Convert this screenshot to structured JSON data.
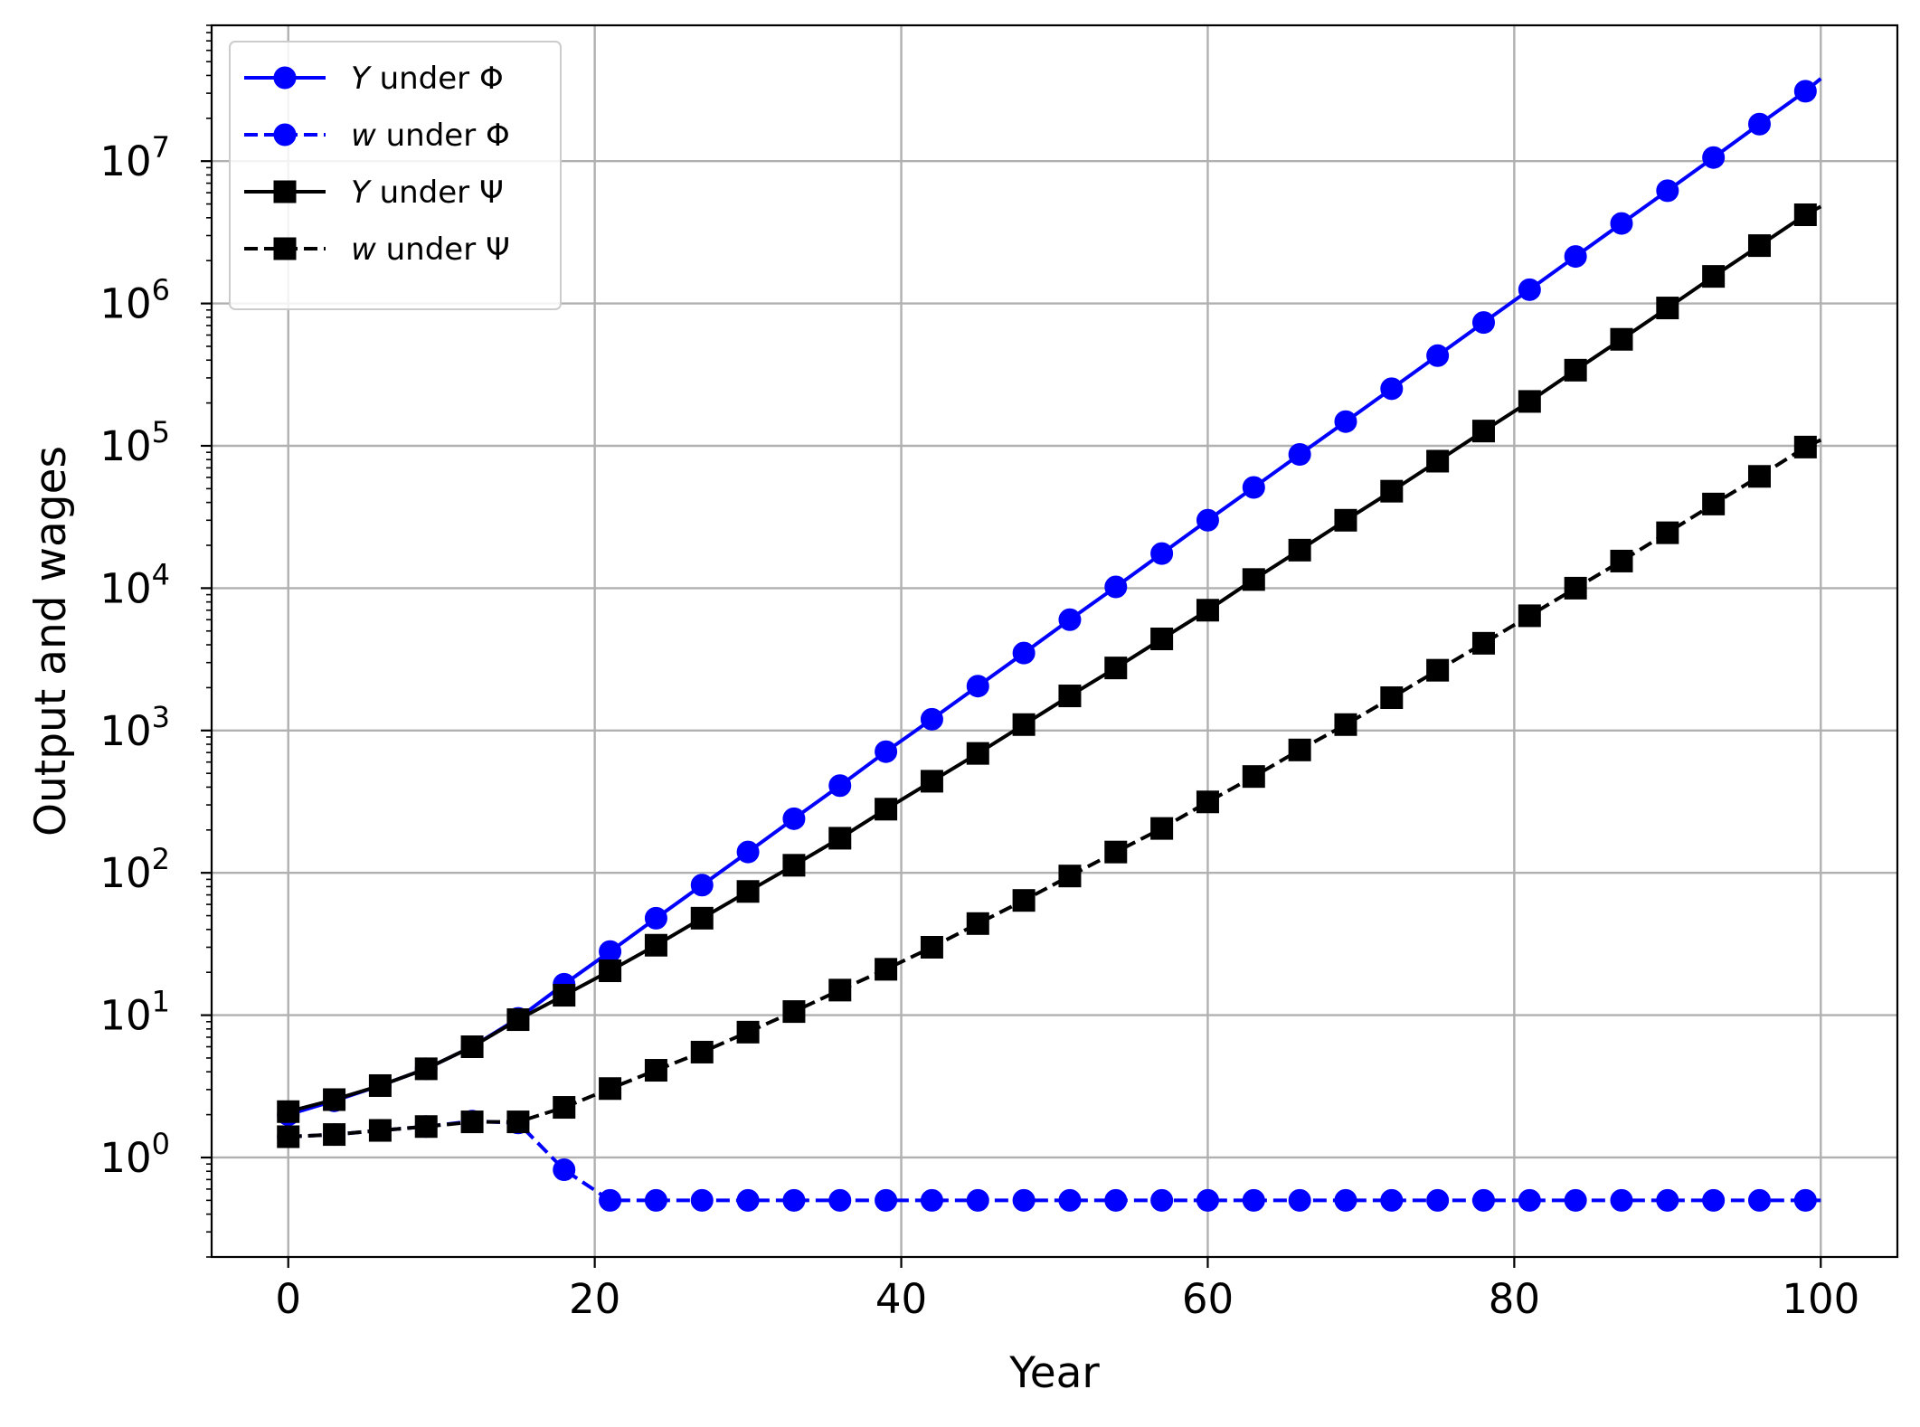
{
  "chart_data": {
    "type": "line",
    "xlabel": "Year",
    "ylabel": "Output and wages",
    "x_scale": "linear",
    "y_scale": "log",
    "xlim": [
      -5,
      105
    ],
    "ylim": [
      0.2,
      90000000
    ],
    "x_ticks": [
      0,
      20,
      40,
      60,
      80,
      100
    ],
    "x_tick_labels": [
      "0",
      "20",
      "40",
      "60",
      "80",
      "100"
    ],
    "y_ticks": [
      1,
      10,
      100,
      1000,
      10000,
      100000,
      1000000,
      10000000
    ],
    "y_tick_labels": [
      {
        "base": "10",
        "exp": "0"
      },
      {
        "base": "10",
        "exp": "1"
      },
      {
        "base": "10",
        "exp": "2"
      },
      {
        "base": "10",
        "exp": "3"
      },
      {
        "base": "10",
        "exp": "4"
      },
      {
        "base": "10",
        "exp": "5"
      },
      {
        "base": "10",
        "exp": "6"
      },
      {
        "base": "10",
        "exp": "7"
      }
    ],
    "grid": true,
    "legend_position": "top-left",
    "x": [
      0,
      3,
      6,
      9,
      12,
      15,
      18,
      21,
      24,
      27,
      30,
      33,
      36,
      39,
      42,
      45,
      48,
      51,
      54,
      57,
      60,
      63,
      66,
      69,
      72,
      75,
      78,
      81,
      84,
      87,
      90,
      93,
      96,
      99
    ],
    "series": [
      {
        "name": "Y under Φ",
        "legend_var": "Y",
        "legend_rest": " under Φ",
        "color": "#0000ff",
        "linestyle": "solid",
        "marker": "circle",
        "values": [
          2.0,
          2.5,
          3.2,
          4.2,
          6.0,
          9.5,
          16.5,
          28,
          48,
          82,
          140,
          240,
          410,
          710,
          1200,
          2050,
          3500,
          6000,
          10200,
          17500,
          30000,
          51000,
          87000,
          148000,
          252000,
          430000,
          735000,
          1250000,
          2140000,
          3650000,
          6200000,
          10600000,
          18200000,
          31000000
        ],
        "line_end": {
          "x": 100,
          "y": 38000000
        }
      },
      {
        "name": "w under Φ",
        "legend_var": "w",
        "legend_rest": " under Φ",
        "color": "#0000ff",
        "linestyle": "dashed",
        "marker": "circle",
        "values": [
          1.4,
          1.45,
          1.55,
          1.65,
          1.8,
          1.75,
          0.82,
          0.5,
          0.5,
          0.5,
          0.5,
          0.5,
          0.5,
          0.5,
          0.5,
          0.5,
          0.5,
          0.5,
          0.5,
          0.5,
          0.5,
          0.5,
          0.5,
          0.5,
          0.5,
          0.5,
          0.5,
          0.5,
          0.5,
          0.5,
          0.5,
          0.5,
          0.5,
          0.5
        ],
        "line_end": {
          "x": 100,
          "y": 0.5
        }
      },
      {
        "name": "Y under Ψ",
        "legend_var": "Y",
        "legend_rest": " under Ψ",
        "color": "#000000",
        "linestyle": "solid",
        "marker": "square",
        "values": [
          2.1,
          2.55,
          3.2,
          4.2,
          6.0,
          9.3,
          13.8,
          20.5,
          31,
          48,
          74,
          113,
          175,
          280,
          440,
          690,
          1100,
          1750,
          2750,
          4400,
          7000,
          11500,
          18500,
          30000,
          48000,
          78000,
          127000,
          205000,
          340000,
          560000,
          930000,
          1550000,
          2550000,
          4200000
        ],
        "line_end": {
          "x": 100,
          "y": 4800000
        }
      },
      {
        "name": "w under Ψ",
        "legend_var": "w",
        "legend_rest": " under Ψ",
        "color": "#000000",
        "linestyle": "dashed",
        "marker": "square",
        "values": [
          1.4,
          1.45,
          1.55,
          1.65,
          1.78,
          1.78,
          2.25,
          3.05,
          4.1,
          5.5,
          7.6,
          10.6,
          15,
          21,
          30,
          44,
          64,
          95,
          140,
          205,
          315,
          475,
          730,
          1100,
          1700,
          2650,
          4100,
          6400,
          10000,
          15500,
          24500,
          39000,
          61000,
          98000
        ],
        "line_end": {
          "x": 100,
          "y": 110000
        }
      }
    ]
  }
}
